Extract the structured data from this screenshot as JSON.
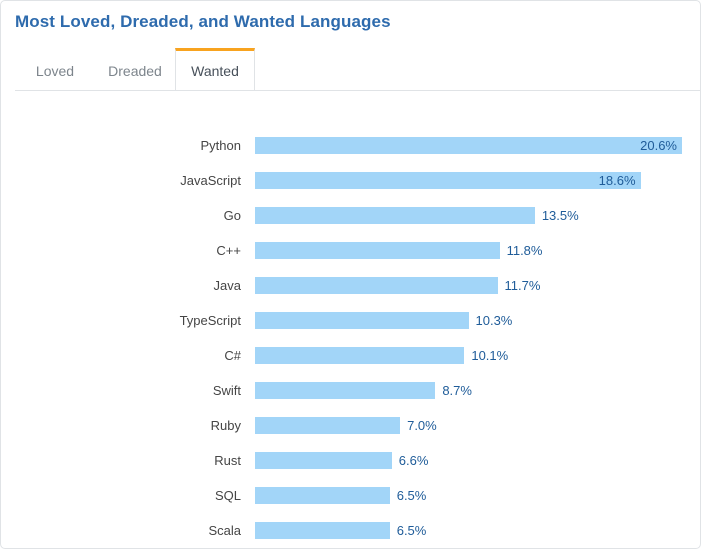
{
  "page": {
    "title": "Most Loved, Dreaded, and Wanted Languages"
  },
  "tabs": [
    {
      "label": "Loved",
      "active": false
    },
    {
      "label": "Dreaded",
      "active": false
    },
    {
      "label": "Wanted",
      "active": true
    }
  ],
  "colors": {
    "title_blue": "#2e6bad",
    "bar_fill": "#a2d5f8",
    "value_text_blue": "#1f5c99",
    "language_label_text": "#454545",
    "tab_active_accent_orange": "#f8a31f",
    "tab_inactive_text": "#7d858c",
    "active_tab_text": "#47505a",
    "border_gray": "#e0e3e6"
  },
  "chart_data": {
    "type": "bar",
    "orientation": "horizontal",
    "title": "Most Loved, Dreaded, and Wanted Languages",
    "active_tab": "Wanted",
    "categories": [
      "Python",
      "JavaScript",
      "Go",
      "C++",
      "Java",
      "TypeScript",
      "C#",
      "Swift",
      "Ruby",
      "Rust",
      "SQL",
      "Scala"
    ],
    "values": [
      20.6,
      18.6,
      13.5,
      11.8,
      11.7,
      10.3,
      10.1,
      8.7,
      7.0,
      6.6,
      6.5,
      6.5
    ],
    "value_labels": [
      "20.6%",
      "18.6%",
      "13.5%",
      "11.8%",
      "11.7%",
      "10.3%",
      "10.1%",
      "8.7%",
      "7.0%",
      "6.6%",
      "6.5%",
      "6.5%"
    ],
    "xlim": [
      0,
      20.6
    ],
    "grid": false,
    "legend": false,
    "value_label_position_rule": "inside bar when bar is near full width, otherwise outside right of bar"
  }
}
